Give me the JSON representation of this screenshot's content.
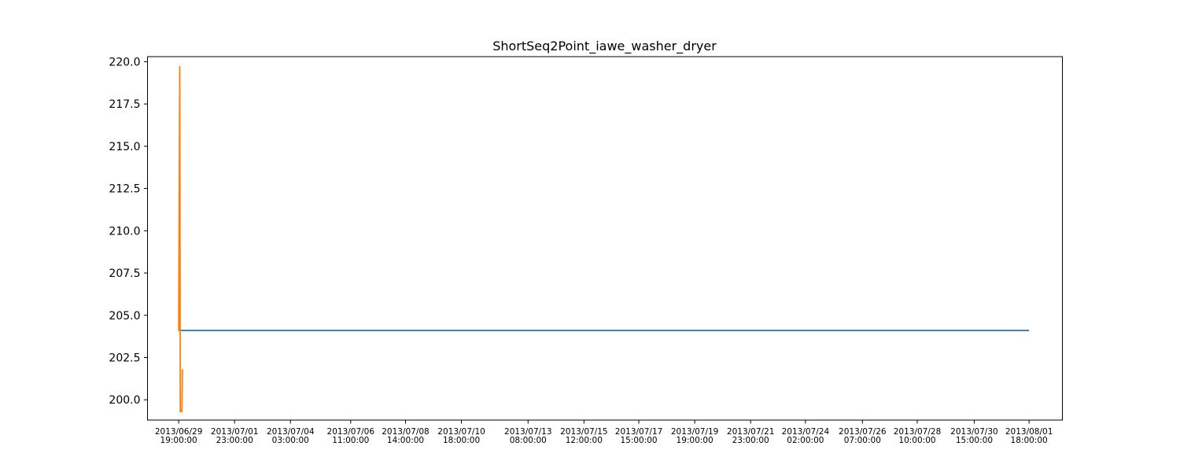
{
  "chart_data": {
    "type": "line",
    "title": "ShortSeq2Point_iawe_washer_dryer",
    "xlabel": "",
    "ylabel": "",
    "ylim": [
      198.8,
      220.3
    ],
    "xlim": [
      "2013/06/28 14:00:00",
      "2013/08/03 01:00:00"
    ],
    "x_ticks": [
      [
        "2013/06/29",
        "19:00:00"
      ],
      [
        "2013/07/01",
        "23:00:00"
      ],
      [
        "2013/07/04",
        "03:00:00"
      ],
      [
        "2013/07/06",
        "11:00:00"
      ],
      [
        "2013/07/08",
        "14:00:00"
      ],
      [
        "2013/07/10",
        "18:00:00"
      ],
      [
        "2013/07/13",
        "08:00:00"
      ],
      [
        "2013/07/15",
        "12:00:00"
      ],
      [
        "2013/07/17",
        "15:00:00"
      ],
      [
        "2013/07/19",
        "19:00:00"
      ],
      [
        "2013/07/21",
        "23:00:00"
      ],
      [
        "2013/07/24",
        "02:00:00"
      ],
      [
        "2013/07/26",
        "07:00:00"
      ],
      [
        "2013/07/28",
        "10:00:00"
      ],
      [
        "2013/07/30",
        "15:00:00"
      ],
      [
        "2013/08/01",
        "18:00:00"
      ]
    ],
    "y_ticks": [
      "200.0",
      "202.5",
      "205.0",
      "207.5",
      "210.0",
      "212.5",
      "215.0",
      "217.5",
      "220.0"
    ],
    "grid": false,
    "legend": "none",
    "series": [
      {
        "color": "#1f77b4",
        "x": [
          "2013/06/29 19:00:00",
          "2013/08/01 18:00:00"
        ],
        "y": [
          204.1,
          204.1
        ]
      },
      {
        "color": "#ff7f0e",
        "x": [
          "2013/06/29 19:00:00",
          "2013/06/29 20:00:00",
          "2013/06/29 20:30:00",
          "2013/06/29 22:00:00",
          "2013/06/29 22:30:00"
        ],
        "y": [
          204.1,
          219.7,
          199.3,
          199.3,
          201.8
        ]
      }
    ]
  }
}
